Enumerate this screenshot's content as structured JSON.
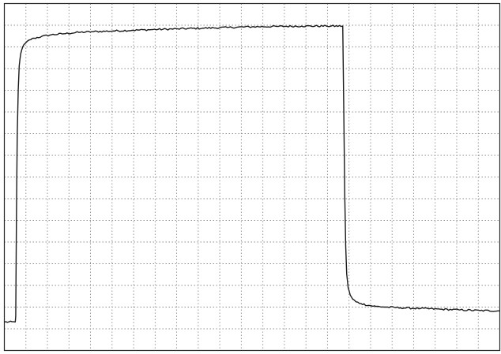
{
  "chart_data": {
    "type": "line",
    "title": "",
    "xlabel": "",
    "ylabel": "",
    "grid": true,
    "legend": "none",
    "xlim": [
      0,
      100
    ],
    "ylim": [
      0,
      100
    ],
    "x_divisions": 23,
    "y_divisions": 16,
    "series": [
      {
        "color": "#1a1a1a",
        "x": [
          0,
          2.2,
          2.3,
          2.45,
          2.6,
          2.8,
          3.0,
          3.3,
          3.7,
          4.2,
          5.0,
          6.0,
          7.5,
          9.5,
          12,
          15,
          18,
          22,
          26,
          30,
          35,
          40,
          45,
          50,
          55,
          60,
          65,
          68.3,
          68.5,
          68.7,
          68.9,
          69.1,
          69.4,
          69.8,
          70.3,
          71,
          72,
          73.5,
          75,
          77,
          80,
          84,
          88,
          92,
          96,
          100
        ],
        "y": [
          8.2,
          8.2,
          10,
          40,
          62,
          75,
          82,
          85.5,
          87.5,
          88.5,
          89.5,
          90,
          90.5,
          91,
          91.3,
          91.7,
          91.9,
          92.1,
          92.3,
          92.5,
          92.7,
          92.9,
          93.1,
          93.3,
          93.4,
          93.5,
          93.5,
          93.5,
          70,
          45,
          30,
          22,
          18,
          16,
          14.8,
          14,
          13.5,
          13.0,
          12.7,
          12.5,
          12.3,
          12.1,
          11.9,
          11.7,
          11.5,
          11.4
        ]
      }
    ]
  }
}
